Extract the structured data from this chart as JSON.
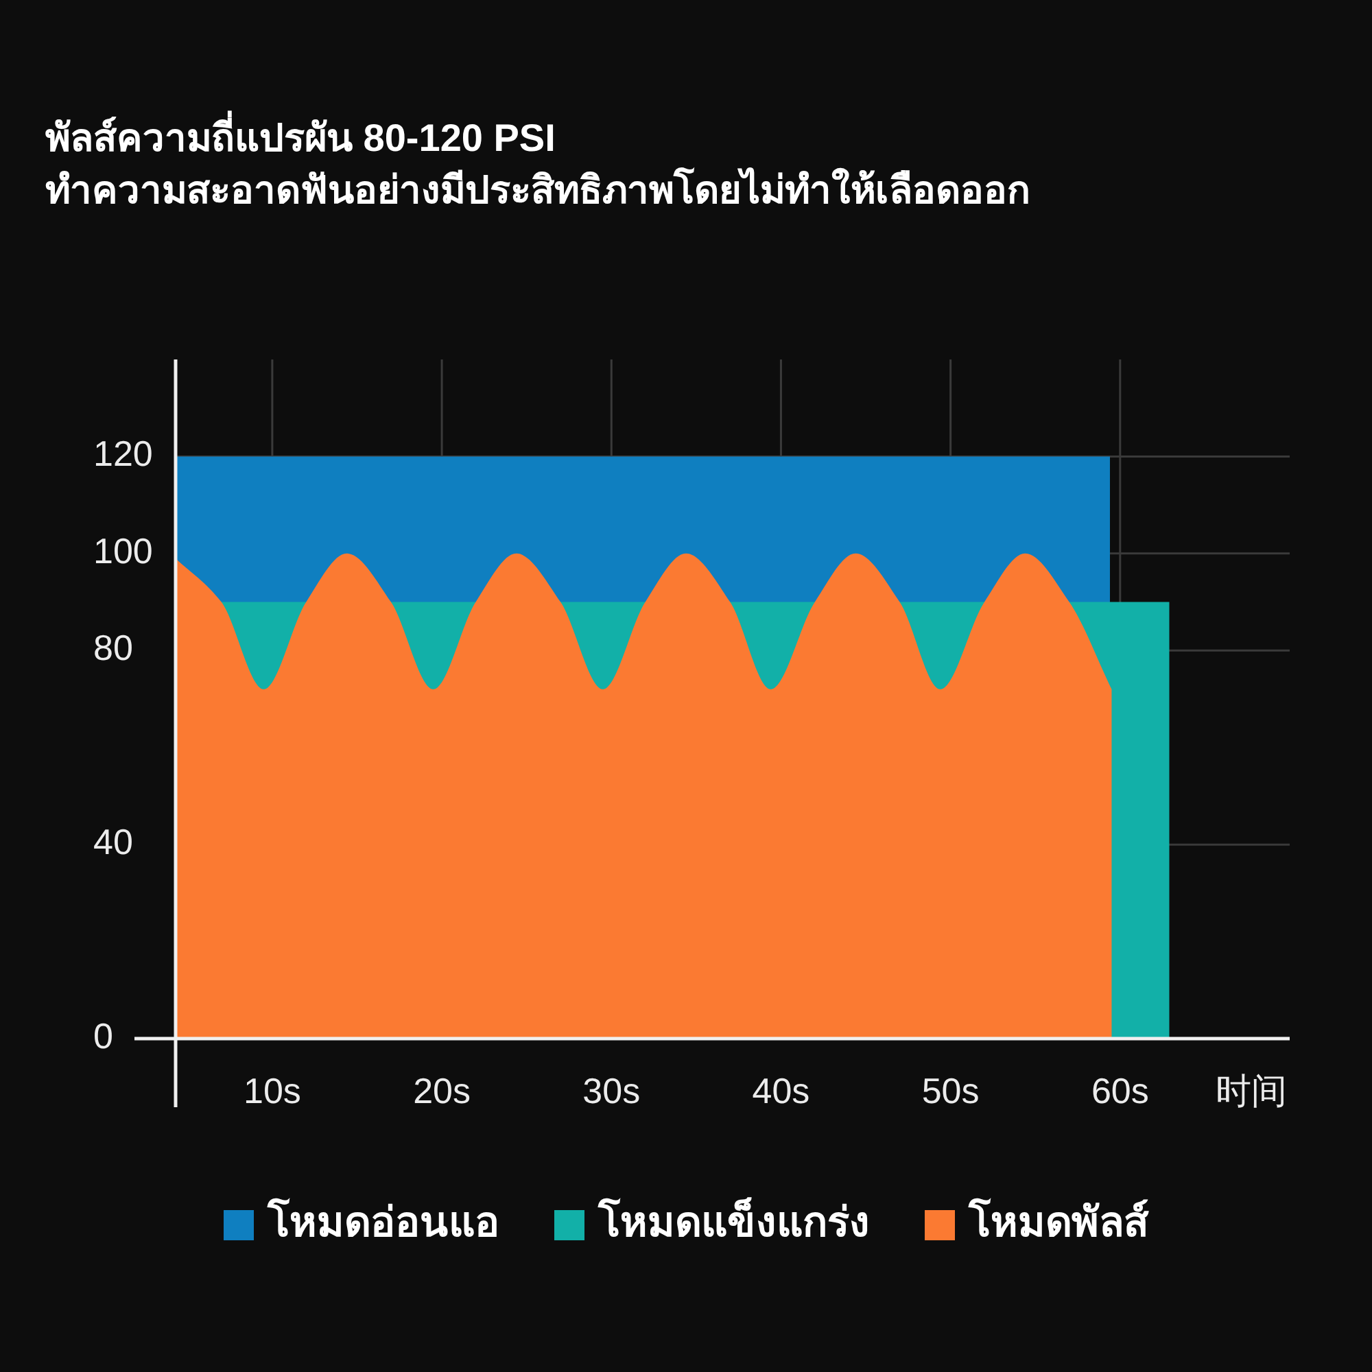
{
  "chart_data": {
    "type": "area",
    "title": "พัลส์ความถี่แปรผัน 80-120 PSI",
    "subtitle": "ทำความสะอาดฟันอย่างมีประสิทธิภาพโดยไม่ทำให้เลือดออก",
    "xlabel": "时间",
    "xlim": [
      4.3,
      70
    ],
    "xticks": [
      {
        "value": 10,
        "label": "10s"
      },
      {
        "value": 20,
        "label": "20s"
      },
      {
        "value": 30,
        "label": "30s"
      },
      {
        "value": 40,
        "label": "40s"
      },
      {
        "value": 50,
        "label": "50s"
      },
      {
        "value": 60,
        "label": "60s"
      }
    ],
    "ylim": [
      0,
      140
    ],
    "yticks": [
      0,
      40,
      80,
      100,
      120
    ],
    "grid": true,
    "legend": "bottom",
    "series": [
      {
        "name": "โหมดอ่อนแอ",
        "color": "#0f7fc0",
        "x": [
          4.3,
          59.4
        ],
        "values": [
          120,
          120
        ]
      },
      {
        "name": "โหมดแข็งแกร่ง",
        "color": "#12b0a8",
        "x": [
          4.3,
          62.9
        ],
        "values": [
          90,
          90
        ]
      },
      {
        "name": "โหมดพัลส์",
        "color": "#fb7a32",
        "x": [
          4.3,
          7,
          9.5,
          12,
          14.4,
          17,
          19.5,
          22,
          24.4,
          27,
          29.5,
          32,
          34.4,
          37,
          39.4,
          42,
          44.4,
          47,
          49.4,
          52,
          54.4,
          57,
          59.5
        ],
        "values": [
          99,
          90,
          72,
          90,
          100,
          90,
          72,
          90,
          100,
          90,
          72,
          90,
          100,
          90,
          72,
          90,
          100,
          90,
          72,
          90,
          100,
          90,
          72
        ]
      }
    ]
  }
}
